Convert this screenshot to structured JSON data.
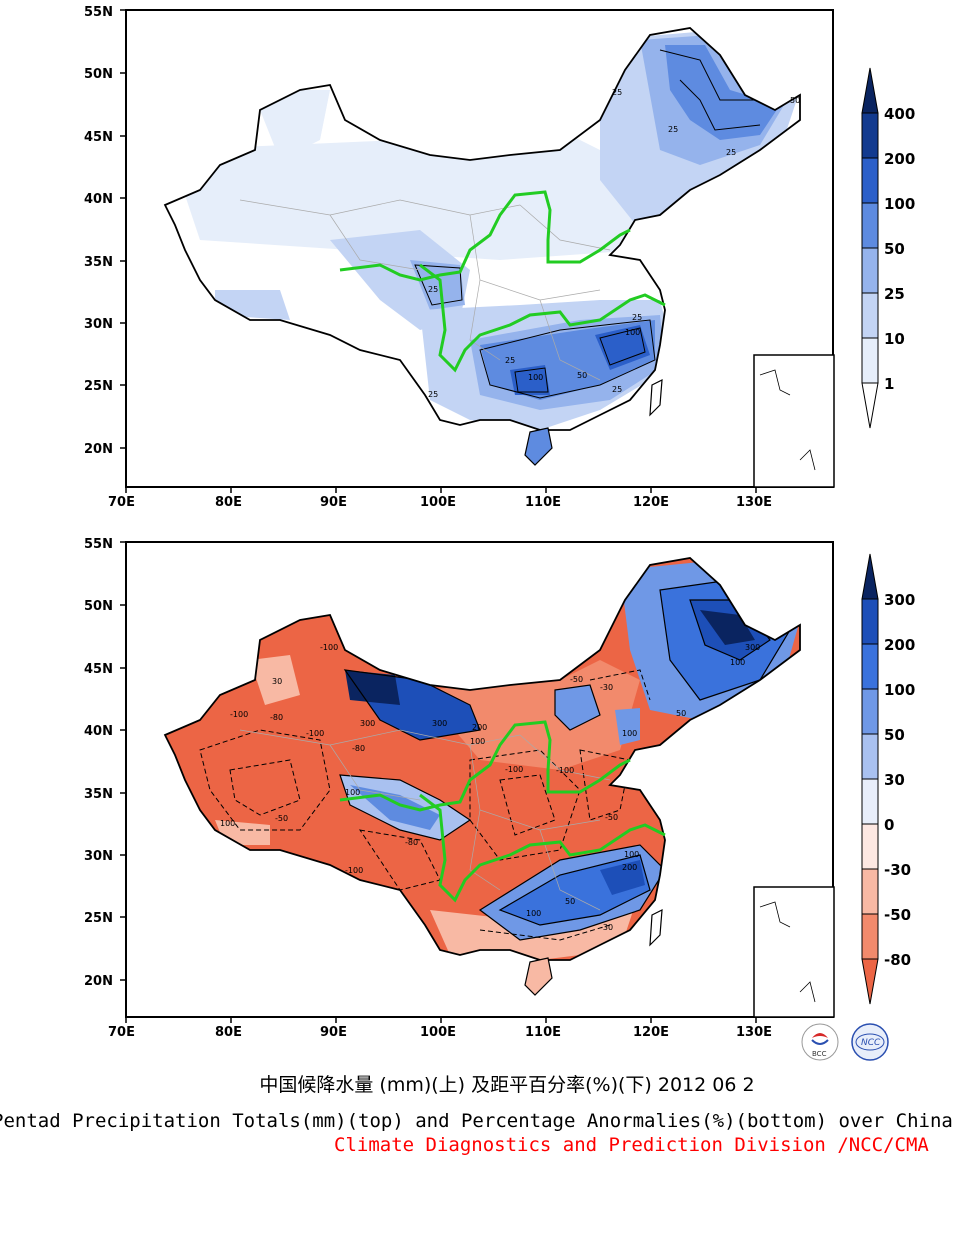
{
  "map": {
    "lon_labels": [
      "70E",
      "80E",
      "90E",
      "100E",
      "110E",
      "120E",
      "130E"
    ],
    "lat_labels": [
      "55N",
      "50N",
      "45N",
      "40N",
      "35N",
      "30N",
      "25N",
      "20N"
    ]
  },
  "top_panel": {
    "colorbar": {
      "levels": [
        "1",
        "10",
        "25",
        "50",
        "100",
        "200",
        "400"
      ],
      "colors": [
        "#ffffff",
        "#e6eefa",
        "#c3d4f4",
        "#95b3ec",
        "#5e8be0",
        "#2b5fc9",
        "#123a8f",
        "#0a2460"
      ]
    },
    "contour_labels": [
      "25",
      "25",
      "25",
      "50",
      "25",
      "25",
      "100",
      "100",
      "25",
      "50",
      "25",
      "25"
    ]
  },
  "bottom_panel": {
    "colorbar": {
      "levels": [
        "300",
        "200",
        "100",
        "50",
        "30",
        "0",
        "-30",
        "-50",
        "-80"
      ],
      "colors": [
        "#0a2460",
        "#1d4fb8",
        "#3a72dc",
        "#6f98e6",
        "#a9c1f0",
        "#e8eefa",
        "#fde8e2",
        "#f8b9a4",
        "#f28a6c",
        "#ec6545"
      ]
    },
    "contour_labels": [
      "-100",
      "-100",
      "-80",
      "300",
      "300",
      "200",
      "100",
      "-100",
      "-80",
      "-100",
      "-50",
      "-30",
      "100",
      "-50",
      "-100",
      "-80",
      "-100",
      "-50",
      "100",
      "200",
      "300",
      "100",
      "100",
      "50",
      "50",
      "100",
      "30",
      "-30",
      "100"
    ]
  },
  "captions": {
    "cn": "中国候降水量 (mm)(上) 及距平百分率(%)(下) 2012 06 2",
    "en": "Pentad Precipitation Totals(mm)(top) and Percentage Anormalies(%)(bottom) over China",
    "org": "Climate Diagnostics and Prediction Division /NCC/CMA"
  },
  "logos": {
    "left": "BCC",
    "right": "NCC"
  }
}
